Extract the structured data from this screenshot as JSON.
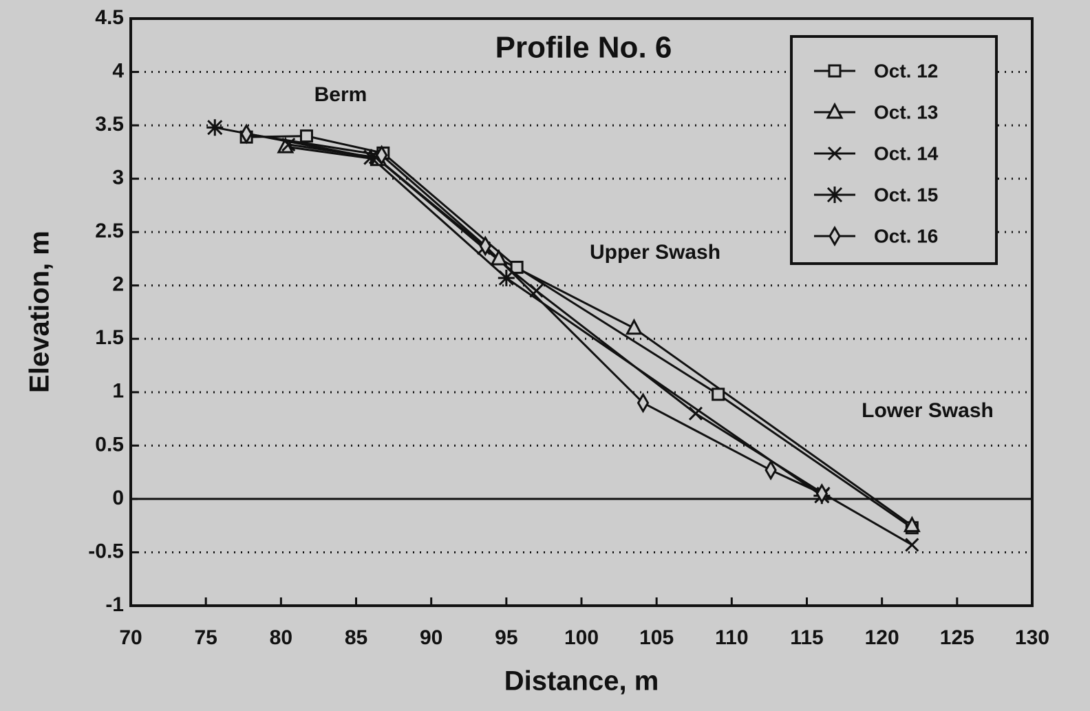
{
  "chart_data": {
    "type": "line",
    "title": "Profile No. 6",
    "x_label": "Distance, m",
    "y_label": "Elevation, m",
    "xlim": [
      70,
      130
    ],
    "xticks": [
      70,
      75,
      80,
      85,
      90,
      95,
      100,
      105,
      110,
      115,
      120,
      125,
      130
    ],
    "ylim": [
      -1,
      4.5
    ],
    "yticks": [
      -1,
      -0.5,
      0,
      0.5,
      1,
      1.5,
      2,
      2.5,
      3,
      3.5,
      4,
      4.5
    ],
    "grid": true,
    "legend": "upper right",
    "annotations": [
      "Berm",
      "Upper Swash",
      "Lower Swash"
    ],
    "series": [
      {
        "name": "Oct. 12",
        "color": "#111111",
        "marker": "square",
        "x": [
          77.7,
          81.7,
          86.8,
          95.7,
          109.1,
          122
        ],
        "values": [
          3.39,
          3.4,
          3.24,
          2.17,
          0.98,
          -0.27
        ]
      },
      {
        "name": "Oct. 13",
        "color": "#111111",
        "marker": "triangle",
        "x": [
          80.3,
          86.5,
          94.5,
          103.5,
          122
        ],
        "values": [
          3.3,
          3.18,
          2.25,
          1.6,
          -0.25
        ]
      },
      {
        "name": "Oct. 14",
        "color": "#111111",
        "marker": "x",
        "x": [
          80.5,
          86.3,
          93.5,
          97,
          107.6,
          116.1,
          122
        ],
        "values": [
          3.32,
          3.2,
          2.35,
          1.95,
          0.8,
          0.05,
          -0.43
        ]
      },
      {
        "name": "Oct. 15",
        "color": "#111111",
        "marker": "asterisk",
        "x": [
          75.6,
          86,
          95,
          116
        ],
        "values": [
          3.48,
          3.2,
          2.07,
          0.03
        ]
      },
      {
        "name": "Oct. 16",
        "color": "#111111",
        "marker": "diamond",
        "x": [
          77.7,
          86.7,
          93.6,
          104.1,
          112.6,
          116
        ],
        "values": [
          3.42,
          3.22,
          2.37,
          0.9,
          0.27,
          0.05
        ]
      }
    ]
  }
}
